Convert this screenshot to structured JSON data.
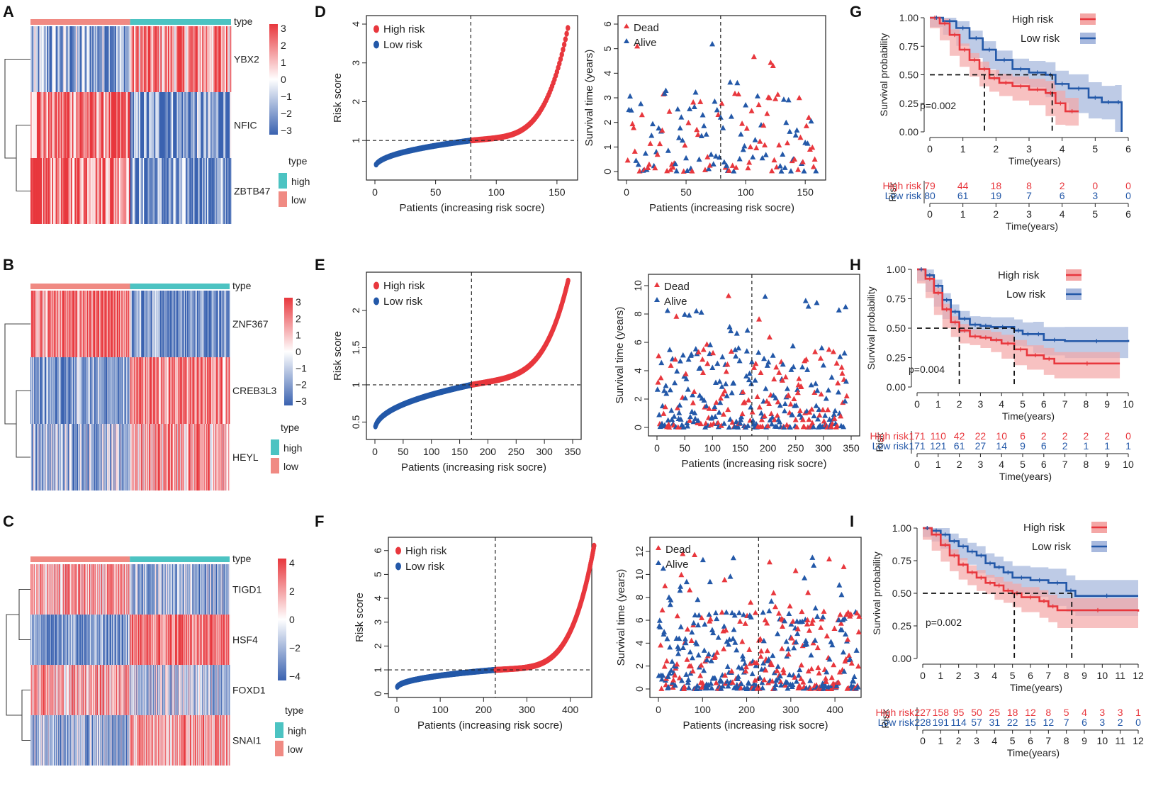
{
  "colors": {
    "high": "#e8373d",
    "low": "#2358a8",
    "heat_high": "#e8373d",
    "heat_low": "#3a62b0",
    "anno_high": "#4cc3c2",
    "anno_low": "#f08a83",
    "band_high": "#f4a7a6",
    "band_low": "#a8b9de"
  },
  "chart_data": [
    {
      "panel": "A",
      "type": "heatmap",
      "annotation_label": "type",
      "genes": [
        "YBX2",
        "NFIC",
        "ZBTB47"
      ],
      "scale_ticks": [
        "3",
        "2",
        "1",
        "0",
        "−1",
        "−2",
        "−3"
      ],
      "legend_title": "type",
      "legend_items": [
        "high",
        "low"
      ],
      "n_low": 79,
      "n_high": 80
    },
    {
      "panel": "B",
      "type": "heatmap",
      "annotation_label": "type",
      "genes": [
        "ZNF367",
        "CREB3L3",
        "HEYL"
      ],
      "scale_ticks": [
        "3",
        "2",
        "1",
        "0",
        "−1",
        "−2",
        "−3"
      ],
      "legend_title": "type",
      "legend_items": [
        "high",
        "low"
      ],
      "n_low": 171,
      "n_high": 171
    },
    {
      "panel": "C",
      "type": "heatmap",
      "annotation_label": "type",
      "genes": [
        "TIGD1",
        "HSF4",
        "FOXD1",
        "SNAI1"
      ],
      "scale_ticks": [
        "4",
        "2",
        "0",
        "−2",
        "−4"
      ],
      "legend_title": "type",
      "legend_items": [
        "high",
        "low"
      ],
      "n_low": 227,
      "n_high": 228
    },
    {
      "panel": "D",
      "type": "scatter",
      "xlabel": "Patients (increasing risk socre)",
      "ylabel": "Risk score",
      "xlim": [
        0,
        160
      ],
      "ylim": [
        0.2,
        4.0
      ],
      "xticks": [
        0,
        50,
        100,
        150
      ],
      "yticks": [
        1,
        2,
        3,
        4
      ],
      "legend": [
        "High risk",
        "Low risk"
      ],
      "cutoff_x": 79,
      "cutoff_y": 1.0,
      "n": 159,
      "start": 0.28,
      "end_low": 1.0,
      "end_high": 3.9
    },
    {
      "panel": "D2",
      "type": "scatter",
      "xlabel": "Patients (increasing risk socre)",
      "ylabel": "Survival time (years)",
      "xlim": [
        0,
        160
      ],
      "ylim": [
        0,
        6
      ],
      "xticks": [
        0,
        50,
        100,
        150
      ],
      "yticks": [
        0,
        1,
        2,
        3,
        4,
        5,
        6
      ],
      "legend": [
        "Dead",
        "Alive"
      ],
      "cutoff_x": 79,
      "n": 159
    },
    {
      "panel": "E",
      "type": "scatter",
      "xlabel": "Patients (increasing risk socre)",
      "ylabel": "Risk score",
      "xlim": [
        0,
        350
      ],
      "ylim": [
        0.38,
        2.4
      ],
      "xticks": [
        0,
        50,
        100,
        150,
        200,
        250,
        300,
        350
      ],
      "yticks": [
        0.5,
        1.0,
        1.5,
        2.0
      ],
      "legend": [
        "High risk",
        "Low risk"
      ],
      "cutoff_x": 171,
      "cutoff_y": 1.0,
      "n": 342,
      "start": 0.38,
      "end_low": 1.0,
      "end_high": 2.4
    },
    {
      "panel": "E2",
      "type": "scatter",
      "xlabel": "Patients (increasing risk socre)",
      "ylabel": "Survival time (years)",
      "xlim": [
        0,
        350
      ],
      "ylim": [
        0,
        10.2
      ],
      "xticks": [
        0,
        50,
        100,
        150,
        200,
        250,
        300,
        350
      ],
      "yticks": [
        0,
        2,
        4,
        6,
        8,
        10
      ],
      "legend": [
        "Dead",
        "Alive"
      ],
      "cutoff_x": 171,
      "n": 342
    },
    {
      "panel": "F",
      "type": "scatter",
      "xlabel": "Patients (increasing risk socre)",
      "ylabel": "Risk score",
      "xlim": [
        0,
        430
      ],
      "ylim": [
        0.2,
        6.2
      ],
      "xticks": [
        0,
        100,
        200,
        300,
        400
      ],
      "yticks": [
        0,
        1,
        2,
        3,
        4,
        5,
        6
      ],
      "legend": [
        "High risk",
        "Low risk"
      ],
      "cutoff_x": 227,
      "cutoff_y": 1.0,
      "n": 455,
      "start": 0.22,
      "end_low": 1.0,
      "end_high": 6.2
    },
    {
      "panel": "F2",
      "type": "scatter",
      "xlabel": "Patients (increasing risk socre)",
      "ylabel": "Survival time (years)",
      "xlim": [
        0,
        440
      ],
      "ylim": [
        0,
        12.5
      ],
      "xticks": [
        0,
        100,
        200,
        300,
        400
      ],
      "yticks": [
        0,
        2,
        4,
        6,
        8,
        10,
        12
      ],
      "legend": [
        "Dead",
        "Alive"
      ],
      "cutoff_x": 227,
      "n": 455
    },
    {
      "panel": "G",
      "type": "line",
      "ylabel": "Survival probability",
      "xlabel": "Time(years)",
      "xlim": [
        0,
        6
      ],
      "ylim": [
        0,
        1
      ],
      "xticks": [
        0,
        1,
        2,
        3,
        4,
        5,
        6
      ],
      "yticks": [
        "0.00",
        "0.25",
        "0.50",
        "0.75",
        "1.00"
      ],
      "pvalue": "p=0.002",
      "legend": [
        "High risk",
        "Low risk"
      ],
      "high_curve": [
        [
          0,
          1.0
        ],
        [
          0.3,
          0.95
        ],
        [
          0.6,
          0.85
        ],
        [
          0.9,
          0.72
        ],
        [
          1.2,
          0.63
        ],
        [
          1.5,
          0.55
        ],
        [
          1.8,
          0.47
        ],
        [
          2.1,
          0.43
        ],
        [
          2.5,
          0.4
        ],
        [
          3.0,
          0.37
        ],
        [
          3.5,
          0.34
        ],
        [
          3.8,
          0.25
        ],
        [
          4.1,
          0.18
        ],
        [
          4.5,
          0.18
        ]
      ],
      "low_curve": [
        [
          0,
          1.0
        ],
        [
          0.4,
          0.97
        ],
        [
          0.8,
          0.91
        ],
        [
          1.2,
          0.82
        ],
        [
          1.6,
          0.72
        ],
        [
          2.0,
          0.63
        ],
        [
          2.5,
          0.55
        ],
        [
          3.0,
          0.52
        ],
        [
          3.5,
          0.5
        ],
        [
          3.8,
          0.42
        ],
        [
          4.2,
          0.38
        ],
        [
          4.8,
          0.3
        ],
        [
          5.2,
          0.26
        ],
        [
          5.6,
          0.26
        ],
        [
          5.8,
          0.0
        ]
      ],
      "median_high": 1.65,
      "median_low": 3.7,
      "risk_table": {
        "title": "Risk",
        "rows": [
          {
            "name": "High risk",
            "values": [
              "79",
              "44",
              "18",
              "8",
              "2",
              "0",
              "0"
            ]
          },
          {
            "name": "Low risk",
            "values": [
              "80",
              "61",
              "19",
              "7",
              "6",
              "3",
              "0"
            ]
          }
        ],
        "xticks": [
          0,
          1,
          2,
          3,
          4,
          5,
          6
        ],
        "xlabel": "Time(years)"
      }
    },
    {
      "panel": "H",
      "type": "line",
      "ylabel": "Survival probability",
      "xlabel": "Time(years)",
      "xlim": [
        0,
        10
      ],
      "ylim": [
        0,
        1
      ],
      "xticks": [
        0,
        1,
        2,
        3,
        4,
        5,
        6,
        7,
        8,
        9,
        10
      ],
      "yticks": [
        "0.00",
        "0.25",
        "0.50",
        "0.75",
        "1.00"
      ],
      "pvalue": "p=0.004",
      "legend": [
        "High risk",
        "Low risk"
      ],
      "high_curve": [
        [
          0,
          1.0
        ],
        [
          0.4,
          0.92
        ],
        [
          0.8,
          0.8
        ],
        [
          1.2,
          0.66
        ],
        [
          1.6,
          0.55
        ],
        [
          2.0,
          0.48
        ],
        [
          2.5,
          0.43
        ],
        [
          3.0,
          0.42
        ],
        [
          3.5,
          0.4
        ],
        [
          4.0,
          0.37
        ],
        [
          4.6,
          0.32
        ],
        [
          5.2,
          0.27
        ],
        [
          6.0,
          0.24
        ],
        [
          6.5,
          0.2
        ],
        [
          9.6,
          0.2
        ]
      ],
      "low_curve": [
        [
          0,
          1.0
        ],
        [
          0.4,
          0.95
        ],
        [
          0.8,
          0.86
        ],
        [
          1.2,
          0.74
        ],
        [
          1.6,
          0.64
        ],
        [
          2.0,
          0.58
        ],
        [
          2.5,
          0.53
        ],
        [
          3.0,
          0.52
        ],
        [
          3.5,
          0.51
        ],
        [
          4.6,
          0.48
        ],
        [
          5.0,
          0.45
        ],
        [
          5.5,
          0.45
        ],
        [
          6.0,
          0.4
        ],
        [
          7.0,
          0.39
        ],
        [
          10.0,
          0.4
        ]
      ],
      "median_high": 2.0,
      "median_low": 4.6,
      "risk_table": {
        "title": "Risk",
        "rows": [
          {
            "name": "High risk",
            "values": [
              "171",
              "110",
              "42",
              "22",
              "10",
              "6",
              "2",
              "2",
              "2",
              "2",
              "0"
            ]
          },
          {
            "name": "Low risk",
            "values": [
              "171",
              "121",
              "61",
              "27",
              "14",
              "9",
              "6",
              "2",
              "1",
              "1",
              "1"
            ]
          }
        ],
        "xticks": [
          0,
          1,
          2,
          3,
          4,
          5,
          6,
          7,
          8,
          9,
          10
        ],
        "xlabel": "Time(years)"
      }
    },
    {
      "panel": "I",
      "type": "line",
      "ylabel": "Survival probability",
      "xlabel": "Time(years)",
      "xlim": [
        0,
        12
      ],
      "ylim": [
        0,
        1
      ],
      "xticks": [
        0,
        1,
        2,
        3,
        4,
        5,
        6,
        7,
        8,
        9,
        10,
        11,
        12
      ],
      "yticks": [
        "0.00",
        "0.25",
        "0.50",
        "0.75",
        "1.00"
      ],
      "pvalue": "p=0.002",
      "legend": [
        "High risk",
        "Low risk"
      ],
      "high_curve": [
        [
          0,
          1.0
        ],
        [
          0.5,
          0.95
        ],
        [
          1.0,
          0.87
        ],
        [
          1.5,
          0.79
        ],
        [
          2.0,
          0.72
        ],
        [
          2.5,
          0.66
        ],
        [
          3.0,
          0.62
        ],
        [
          3.5,
          0.58
        ],
        [
          4.0,
          0.56
        ],
        [
          4.5,
          0.52
        ],
        [
          5.0,
          0.5
        ],
        [
          5.5,
          0.47
        ],
        [
          6.5,
          0.44
        ],
        [
          7.0,
          0.4
        ],
        [
          7.5,
          0.37
        ],
        [
          12.0,
          0.36
        ]
      ],
      "low_curve": [
        [
          0,
          1.0
        ],
        [
          0.5,
          0.98
        ],
        [
          1.0,
          0.95
        ],
        [
          1.5,
          0.9
        ],
        [
          2.0,
          0.86
        ],
        [
          2.5,
          0.82
        ],
        [
          3.0,
          0.79
        ],
        [
          3.5,
          0.73
        ],
        [
          4.0,
          0.7
        ],
        [
          4.5,
          0.66
        ],
        [
          5.0,
          0.62
        ],
        [
          6.0,
          0.6
        ],
        [
          7.0,
          0.58
        ],
        [
          8.0,
          0.52
        ],
        [
          8.5,
          0.48
        ],
        [
          12.0,
          0.48
        ]
      ],
      "median_high": 5.1,
      "median_low": 8.3,
      "risk_table": {
        "title": "Risk",
        "rows": [
          {
            "name": "High risk",
            "values": [
              "227",
              "158",
              "95",
              "50",
              "25",
              "18",
              "12",
              "8",
              "5",
              "4",
              "3",
              "3",
              "1"
            ]
          },
          {
            "name": "Low risk",
            "values": [
              "228",
              "191",
              "114",
              "57",
              "31",
              "22",
              "15",
              "12",
              "7",
              "6",
              "3",
              "2",
              "0"
            ]
          }
        ],
        "xticks": [
          0,
          1,
          2,
          3,
          4,
          5,
          6,
          7,
          8,
          9,
          10,
          11,
          12
        ],
        "xlabel": "Time(years)"
      }
    }
  ]
}
